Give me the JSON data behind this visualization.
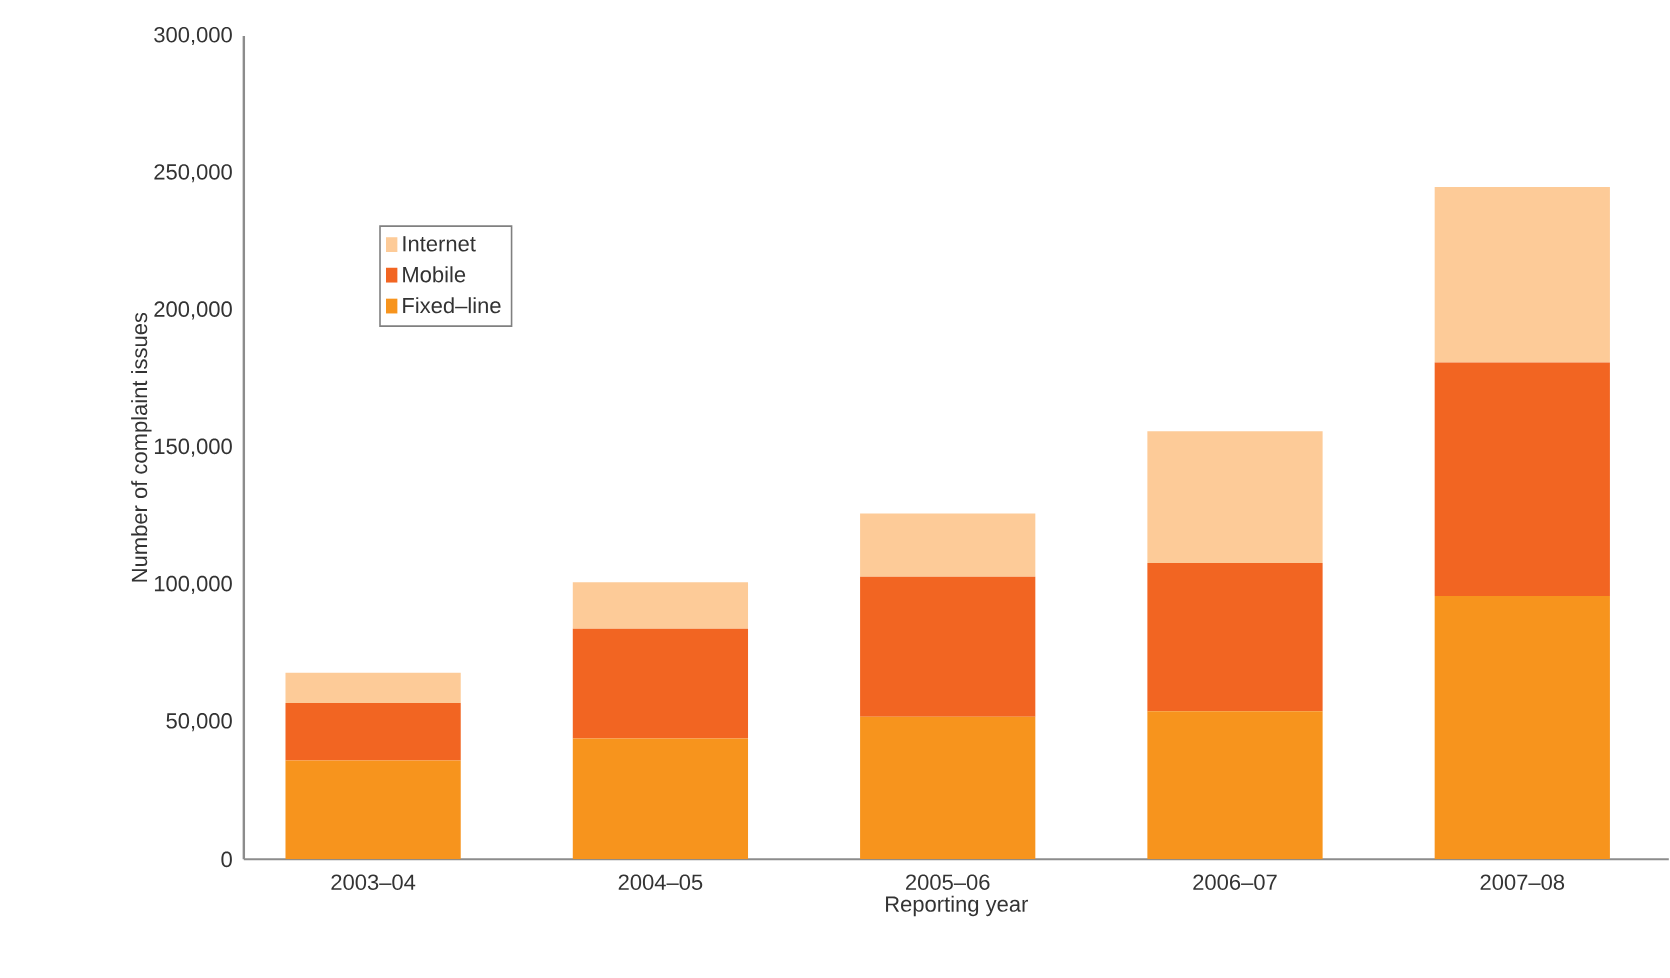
{
  "chart_data": {
    "type": "bar",
    "stacked": true,
    "xlabel": "Reporting year",
    "ylabel": "Number of complaint issues",
    "categories": [
      "2003–04",
      "2004–05",
      "2005–06",
      "2006–07",
      "2007–08"
    ],
    "series": [
      {
        "name": "Fixed–line",
        "color": "#f7941d",
        "values": [
          36000,
          44000,
          52000,
          54000,
          96000
        ]
      },
      {
        "name": "Mobile",
        "color": "#f26522",
        "values": [
          21000,
          40000,
          51000,
          54000,
          85000
        ]
      },
      {
        "name": "Internet",
        "color": "#fdcb98",
        "values": [
          11000,
          17000,
          23000,
          48000,
          64000
        ]
      }
    ],
    "ylim": [
      0,
      300000
    ],
    "yticks": [
      {
        "value": 0,
        "label": "0"
      },
      {
        "value": 50000,
        "label": "50,000"
      },
      {
        "value": 100000,
        "label": "100,000"
      },
      {
        "value": 150000,
        "label": "150,000"
      },
      {
        "value": 200000,
        "label": "200,000"
      },
      {
        "value": 250000,
        "label": "250,000"
      },
      {
        "value": 300000,
        "label": "300,000"
      }
    ],
    "grid": false,
    "legend": "top left"
  }
}
